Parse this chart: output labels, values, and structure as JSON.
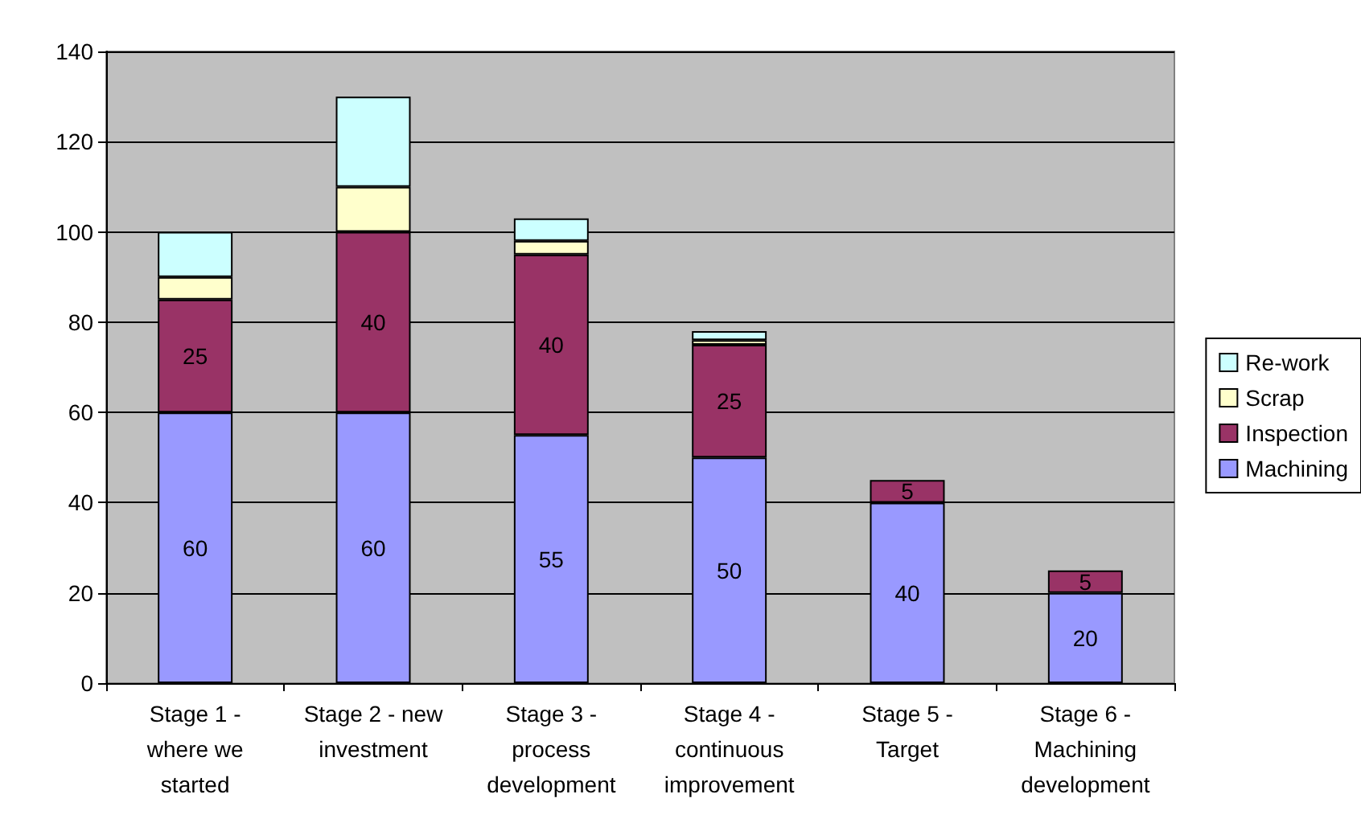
{
  "chart_data": {
    "type": "bar",
    "stacked": true,
    "categories": [
      "Stage 1 -\nwhere we\nstarted",
      "Stage 2 - new\ninvestment",
      "Stage 3 -\nprocess\ndevelopment",
      "Stage 4 -\ncontinuous\nimprovement",
      "Stage 5 -\nTarget",
      "Stage 6 -\nMachining\ndevelopment"
    ],
    "series": [
      {
        "name": "Machining",
        "color": "#9999ff",
        "values": [
          60,
          60,
          55,
          50,
          40,
          20
        ],
        "value_labels": [
          "60",
          "60",
          "55",
          "50",
          "40",
          "20"
        ]
      },
      {
        "name": "Inspection",
        "color": "#993366",
        "values": [
          25,
          40,
          40,
          25,
          5,
          5
        ],
        "value_labels": [
          "25",
          "40",
          "40",
          "25",
          "5",
          "5"
        ]
      },
      {
        "name": "Scrap",
        "color": "#ffffcc",
        "values": [
          5,
          10,
          3,
          1,
          null,
          null
        ]
      },
      {
        "name": "Re-work",
        "color": "#ccffff",
        "values": [
          10,
          20,
          5,
          2,
          null,
          null
        ]
      }
    ],
    "ylim": [
      0,
      140
    ],
    "yticks": [
      0,
      20,
      40,
      60,
      80,
      100,
      120,
      140
    ],
    "grid": "y",
    "legend": "right"
  }
}
